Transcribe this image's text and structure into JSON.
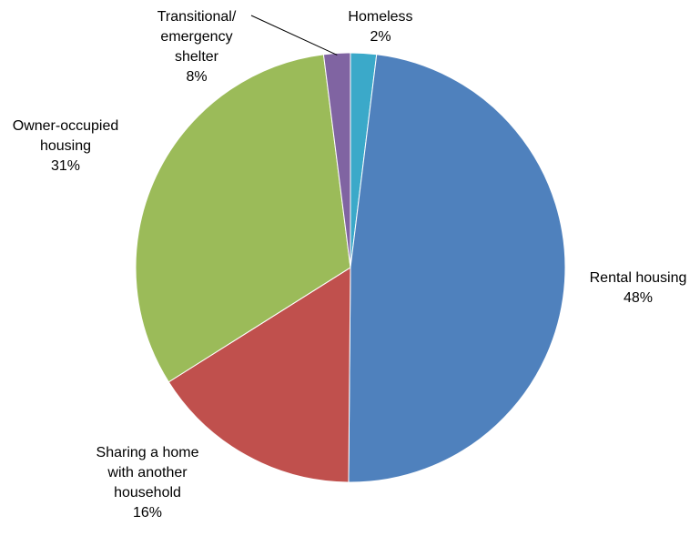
{
  "chart_data": {
    "type": "pie",
    "title": "",
    "slices": [
      {
        "label_lines": [
          "Homeless"
        ],
        "value_text": "2%",
        "value": 2,
        "color": "#3BA9C9"
      },
      {
        "label_lines": [
          "Rental housing"
        ],
        "value_text": "48%",
        "value": 48,
        "color": "#4F81BD"
      },
      {
        "label_lines": [
          "Sharing a home",
          "with another",
          "household"
        ],
        "value_text": "16%",
        "value": 16,
        "color": "#C0504D"
      },
      {
        "label_lines": [
          "Owner-occupied",
          "housing"
        ],
        "value_text": "31%",
        "value": 31,
        "color": "#9BBB59"
      },
      {
        "label_lines": [
          "Transitional/",
          "emergency",
          "shelter"
        ],
        "value_text": "8%",
        "value": 8,
        "color": "#8064A2"
      }
    ],
    "legend": "none"
  }
}
